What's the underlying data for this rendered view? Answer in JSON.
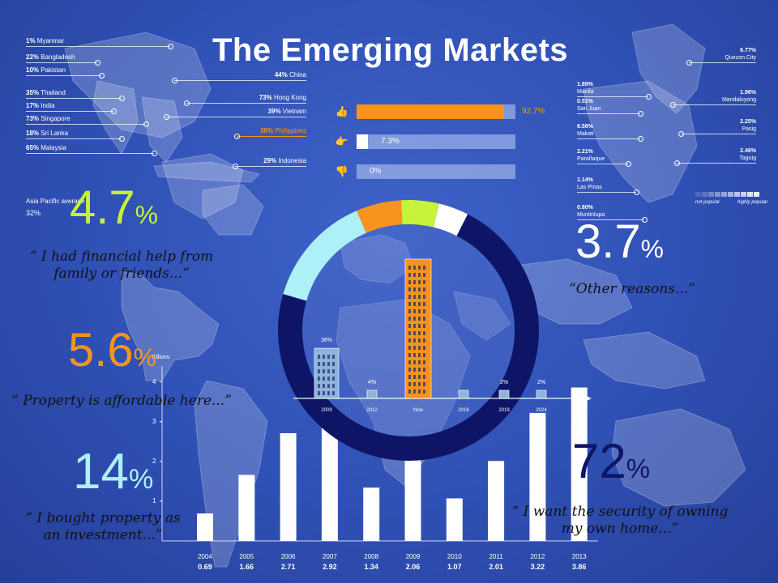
{
  "title": "The Emerging Markets",
  "asia_map": {
    "left_labels": [
      {
        "pct": "1%",
        "country": "Myanmar"
      },
      {
        "pct": "22%",
        "country": "Bangladesh"
      },
      {
        "pct": "10%",
        "country": "Pakistan"
      },
      {
        "pct": "35%",
        "country": "Thailand"
      },
      {
        "pct": "17%",
        "country": "India"
      },
      {
        "pct": "73%",
        "country": "Singapore"
      },
      {
        "pct": "18%",
        "country": "Sri Lanka"
      },
      {
        "pct": "65%",
        "country": "Malaysia"
      }
    ],
    "right_labels": [
      {
        "pct": "44%",
        "country": "China"
      },
      {
        "pct": "73%",
        "country": "Hong Kong"
      },
      {
        "pct": "39%",
        "country": "Vietnam"
      },
      {
        "pct": "36%",
        "country": "Philippines",
        "highlight": true
      },
      {
        "pct": "29%",
        "country": "Indonesia"
      }
    ],
    "average_label": "Asia Pacific average",
    "average_value": "32%",
    "colors": {
      "labels": "#ffffff",
      "highlight": "#f7941d"
    }
  },
  "sentiment": {
    "rows": [
      {
        "icon": "thumbs-up-icon",
        "value": 92.7,
        "label": "92.7%"
      },
      {
        "icon": "thumbs-sideways-icon",
        "value": 7.3,
        "label": "7.3%"
      },
      {
        "icon": "thumbs-down-icon",
        "value": 0,
        "label": "0%"
      }
    ],
    "colors": {
      "fill": "#f7941d",
      "track": "#c3cff2"
    }
  },
  "manila_map": {
    "left_cities": [
      {
        "pct": "1.89%",
        "city": "Manila"
      },
      {
        "pct": "0.51%",
        "city": "San Juan"
      },
      {
        "pct": "6.56%",
        "city": "Makati"
      },
      {
        "pct": "2.21%",
        "city": "Parañaque"
      },
      {
        "pct": "1.14%",
        "city": "Las Pinas"
      },
      {
        "pct": "0.80%",
        "city": "Muntinlupa"
      }
    ],
    "right_cities": [
      {
        "pct": "6.77%",
        "city": "Quezon City"
      },
      {
        "pct": "1.96%",
        "city": "Mandaluyong"
      },
      {
        "pct": "2.25%",
        "city": "Pasig"
      },
      {
        "pct": "2.46%",
        "city": "Taguig"
      }
    ],
    "legend_low": "not popular",
    "legend_high": "highly popular"
  },
  "reasons": [
    {
      "pct": "4.7",
      "sym": "%",
      "quote_lines": [
        "“ I had financial help from",
        "family or friends...”"
      ],
      "color": "#c6f23a"
    },
    {
      "pct": "5.6",
      "sym": "%",
      "quote_lines": [
        "“ Property is affordable here...”"
      ],
      "color": "#f7941d"
    },
    {
      "pct": "14",
      "sym": "%",
      "quote_lines": [
        "“ I bought property as",
        "an investment...”"
      ],
      "color": "#aef0f7"
    },
    {
      "pct": "3.7",
      "sym": "%",
      "quote_lines": [
        "“Other reasons...”"
      ],
      "color": "#ffffff"
    },
    {
      "pct": "72",
      "sym": "%",
      "quote_lines": [
        "“ I want the security of owning",
        "my own home...”"
      ],
      "color": "#0e1566"
    }
  ],
  "donut": {
    "segments": [
      {
        "value": 72,
        "color": "#0e1566"
      },
      {
        "value": 14,
        "color": "#aef0f7"
      },
      {
        "value": 5.6,
        "color": "#f7941d"
      },
      {
        "value": 4.7,
        "color": "#c6f23a"
      },
      {
        "value": 3.7,
        "color": "#ffffff"
      }
    ]
  },
  "building_chart": {
    "points": [
      {
        "label": "2009",
        "pct": "36%",
        "value": 36,
        "color": "#8fb3d9"
      },
      {
        "label": "2012",
        "pct": "4%",
        "value": 4,
        "color": "#8fb3d9"
      },
      {
        "label": "Now",
        "pct": "",
        "value": 100,
        "color": "#f7941d"
      },
      {
        "label": "2016",
        "pct": "",
        "value": 3,
        "color": "#8fb3d9"
      },
      {
        "label": "2019",
        "pct": "2%",
        "value": 2,
        "color": "#8fb3d9"
      },
      {
        "label": "2024",
        "pct": "2%",
        "value": 2,
        "color": "#8fb3d9"
      }
    ]
  },
  "chart_data": {
    "type": "bar",
    "categories": [
      "2004",
      "2005",
      "2006",
      "2007",
      "2008",
      "2009",
      "2010",
      "2011",
      "2012",
      "2013"
    ],
    "values": [
      0.69,
      1.66,
      2.71,
      2.92,
      1.34,
      2.06,
      1.07,
      2.01,
      3.22,
      3.86
    ],
    "value_labels": [
      "0.69",
      "1.66",
      "2.71",
      "2.92",
      "1.34",
      "2.06",
      "1.07",
      "2.01",
      "3.22",
      "3.86"
    ],
    "ylabel": "Billions",
    "yticks": [
      "1",
      "2",
      "3",
      "4"
    ],
    "ylim": [
      0,
      4.4
    ],
    "grid": false,
    "bar_color": "#ffffff"
  }
}
